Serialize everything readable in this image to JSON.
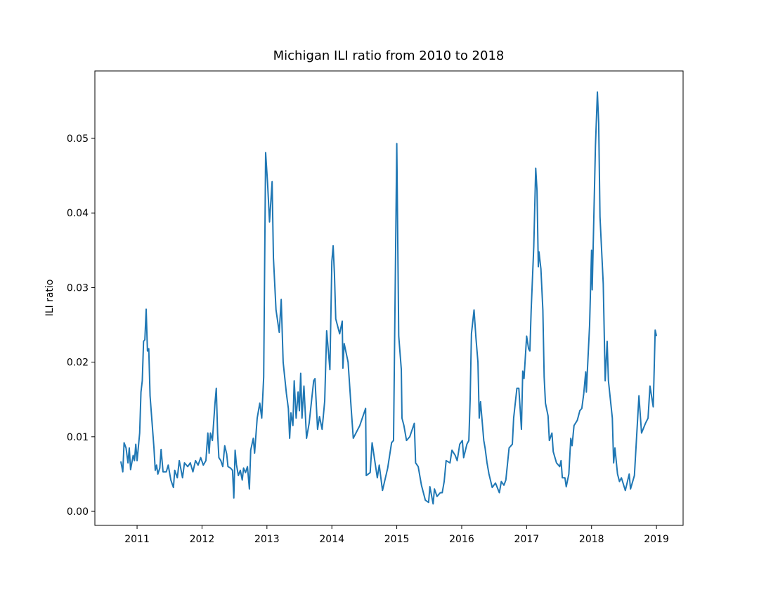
{
  "chart_data": {
    "type": "line",
    "title": "Michigan ILI ratio from 2010 to 2018",
    "y_label": "ILI ratio",
    "x": [
      2010.75,
      2010.78,
      2010.8,
      2010.83,
      2010.86,
      2010.88,
      2010.9,
      2010.94,
      2010.96,
      2010.98,
      2011.0,
      2011.04,
      2011.06,
      2011.08,
      2011.1,
      2011.12,
      2011.14,
      2011.16,
      2011.18,
      2011.2,
      2011.23,
      2011.26,
      2011.28,
      2011.3,
      2011.32,
      2011.35,
      2011.37,
      2011.4,
      2011.45,
      2011.48,
      2011.52,
      2011.56,
      2011.58,
      2011.62,
      2011.65,
      2011.7,
      2011.73,
      2011.78,
      2011.82,
      2011.86,
      2011.9,
      2011.94,
      2011.98,
      2012.02,
      2012.06,
      2012.09,
      2012.11,
      2012.13,
      2012.16,
      2012.2,
      2012.22,
      2012.24,
      2012.26,
      2012.29,
      2012.32,
      2012.35,
      2012.38,
      2012.4,
      2012.44,
      2012.47,
      2012.49,
      2012.51,
      2012.53,
      2012.56,
      2012.59,
      2012.62,
      2012.64,
      2012.67,
      2012.7,
      2012.73,
      2012.75,
      2012.79,
      2012.81,
      2012.85,
      2012.89,
      2012.92,
      2012.95,
      2012.98,
      2013.01,
      2013.04,
      2013.08,
      2013.1,
      2013.14,
      2013.19,
      2013.22,
      2013.25,
      2013.3,
      2013.33,
      2013.35,
      2013.37,
      2013.4,
      2013.42,
      2013.45,
      2013.48,
      2013.5,
      2013.52,
      2013.54,
      2013.57,
      2013.61,
      2013.65,
      2013.72,
      2013.74,
      2013.78,
      2013.81,
      2013.85,
      2013.89,
      2013.92,
      2013.97,
      2014.0,
      2014.02,
      2014.04,
      2014.06,
      2014.12,
      2014.16,
      2014.17,
      2014.19,
      2014.25,
      2014.3,
      2014.33,
      2014.43,
      2014.52,
      2014.53,
      2014.59,
      2014.62,
      2014.7,
      2014.73,
      2014.78,
      2014.86,
      2014.92,
      2014.95,
      2015.0,
      2015.03,
      2015.07,
      2015.08,
      2015.11,
      2015.15,
      2015.2,
      2015.27,
      2015.29,
      2015.33,
      2015.38,
      2015.44,
      2015.49,
      2015.51,
      2015.56,
      2015.58,
      2015.62,
      2015.67,
      2015.7,
      2015.73,
      2015.76,
      2015.82,
      2015.85,
      2015.9,
      2015.93,
      2015.97,
      2016.01,
      2016.03,
      2016.08,
      2016.11,
      2016.13,
      2016.15,
      2016.19,
      2016.22,
      2016.25,
      2016.27,
      2016.29,
      2016.34,
      2016.36,
      2016.39,
      2016.42,
      2016.47,
      2016.52,
      2016.58,
      2016.61,
      2016.65,
      2016.68,
      2016.73,
      2016.78,
      2016.8,
      2016.85,
      2016.88,
      2016.92,
      2016.94,
      2016.96,
      2017.0,
      2017.03,
      2017.05,
      2017.07,
      2017.11,
      2017.14,
      2017.16,
      2017.18,
      2017.19,
      2017.22,
      2017.25,
      2017.27,
      2017.29,
      2017.33,
      2017.35,
      2017.39,
      2017.41,
      2017.46,
      2017.51,
      2017.53,
      2017.55,
      2017.59,
      2017.61,
      2017.65,
      2017.68,
      2017.7,
      2017.73,
      2017.78,
      2017.82,
      2017.85,
      2017.88,
      2017.91,
      2017.92,
      2017.97,
      2018.0,
      2018.01,
      2018.06,
      2018.09,
      2018.11,
      2018.13,
      2018.18,
      2018.21,
      2018.24,
      2018.26,
      2018.32,
      2018.34,
      2018.36,
      2018.4,
      2018.43,
      2018.46,
      2018.52,
      2018.58,
      2018.6,
      2018.66,
      2018.73,
      2018.77,
      2018.83,
      2018.87,
      2018.9,
      2018.95,
      2018.98,
      2019.0
    ],
    "series": [
      {
        "color": "#1f77b4",
        "values": [
          0.0067,
          0.0053,
          0.0092,
          0.0085,
          0.0065,
          0.0085,
          0.0056,
          0.0075,
          0.0068,
          0.009,
          0.0068,
          0.0105,
          0.016,
          0.0175,
          0.0228,
          0.023,
          0.0271,
          0.0215,
          0.0218,
          0.0155,
          0.012,
          0.0085,
          0.0055,
          0.0062,
          0.005,
          0.0058,
          0.0083,
          0.0053,
          0.0053,
          0.0062,
          0.0042,
          0.0032,
          0.0055,
          0.0045,
          0.0068,
          0.0045,
          0.0065,
          0.006,
          0.0065,
          0.0053,
          0.0068,
          0.0062,
          0.0072,
          0.0062,
          0.0068,
          0.0105,
          0.0078,
          0.0105,
          0.0095,
          0.0145,
          0.0165,
          0.0105,
          0.0072,
          0.0068,
          0.006,
          0.0088,
          0.0077,
          0.006,
          0.0058,
          0.0055,
          0.0018,
          0.0082,
          0.0063,
          0.0048,
          0.0055,
          0.0042,
          0.0058,
          0.0052,
          0.006,
          0.003,
          0.0082,
          0.0098,
          0.0078,
          0.0125,
          0.0145,
          0.0125,
          0.018,
          0.0481,
          0.044,
          0.0388,
          0.0442,
          0.034,
          0.027,
          0.024,
          0.0284,
          0.02,
          0.0158,
          0.0138,
          0.0098,
          0.0132,
          0.0115,
          0.0175,
          0.0125,
          0.016,
          0.0135,
          0.0185,
          0.0125,
          0.0168,
          0.0098,
          0.0118,
          0.0175,
          0.0178,
          0.011,
          0.0127,
          0.011,
          0.0148,
          0.0242,
          0.019,
          0.0335,
          0.0356,
          0.0318,
          0.0258,
          0.0238,
          0.0255,
          0.0192,
          0.0225,
          0.02,
          0.0135,
          0.0098,
          0.0115,
          0.0138,
          0.0048,
          0.0052,
          0.0092,
          0.0045,
          0.0062,
          0.0028,
          0.0058,
          0.0092,
          0.0095,
          0.0493,
          0.0235,
          0.019,
          0.0125,
          0.0115,
          0.0095,
          0.01,
          0.0118,
          0.0065,
          0.006,
          0.0035,
          0.0015,
          0.0012,
          0.0033,
          0.001,
          0.003,
          0.002,
          0.0025,
          0.0025,
          0.004,
          0.0068,
          0.0065,
          0.0082,
          0.0075,
          0.0068,
          0.009,
          0.0095,
          0.0072,
          0.009,
          0.0095,
          0.015,
          0.0238,
          0.027,
          0.0232,
          0.02,
          0.0125,
          0.0147,
          0.0095,
          0.0085,
          0.0065,
          0.005,
          0.0032,
          0.0038,
          0.0025,
          0.004,
          0.0035,
          0.0042,
          0.0085,
          0.009,
          0.0125,
          0.0165,
          0.0165,
          0.011,
          0.0188,
          0.0178,
          0.0235,
          0.0218,
          0.0215,
          0.027,
          0.0355,
          0.046,
          0.043,
          0.0328,
          0.0348,
          0.0325,
          0.027,
          0.018,
          0.0145,
          0.0128,
          0.0095,
          0.0105,
          0.008,
          0.0065,
          0.006,
          0.0068,
          0.0045,
          0.0045,
          0.0033,
          0.005,
          0.0098,
          0.0088,
          0.0115,
          0.0122,
          0.0135,
          0.0138,
          0.0158,
          0.0187,
          0.016,
          0.025,
          0.035,
          0.0297,
          0.049,
          0.0562,
          0.052,
          0.0395,
          0.0305,
          0.0175,
          0.0228,
          0.0175,
          0.0125,
          0.0065,
          0.0085,
          0.005,
          0.004,
          0.0045,
          0.0028,
          0.005,
          0.003,
          0.0048,
          0.0155,
          0.0105,
          0.0118,
          0.0125,
          0.0168,
          0.014,
          0.0243,
          0.0235
        ]
      }
    ],
    "xlim": [
      2010.35,
      2019.41
    ],
    "xticks": [
      2011,
      2012,
      2013,
      2014,
      2015,
      2016,
      2017,
      2018,
      2019
    ],
    "ylim": [
      -0.00188,
      0.05904
    ],
    "yticks": [
      {
        "value": 0,
        "label": "0.00"
      },
      0.01,
      0.02,
      0.03,
      0.04,
      0.05
    ],
    "grid": false
  }
}
